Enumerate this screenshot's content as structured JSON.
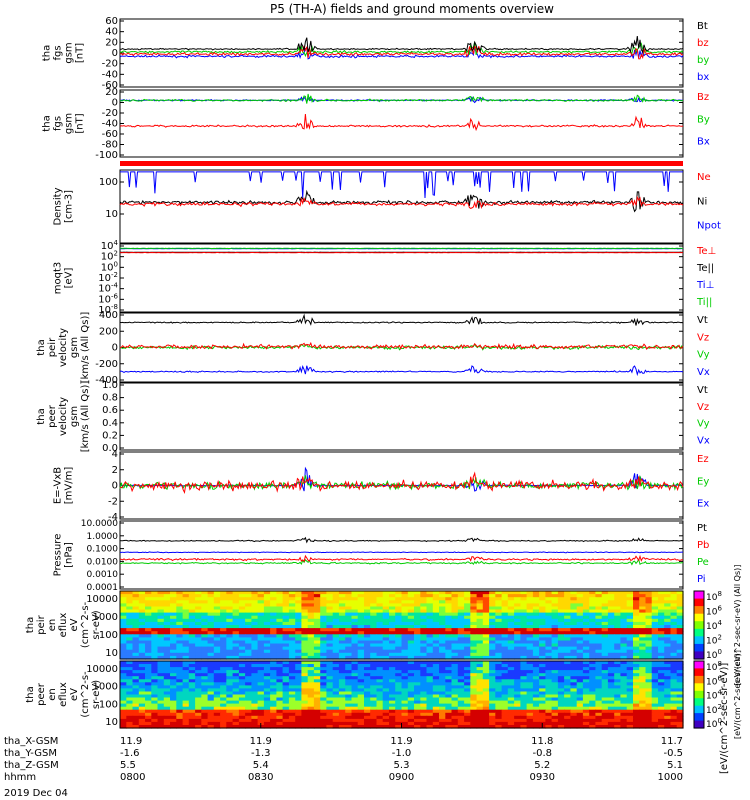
{
  "title": "P5 (TH-A) fields and ground moments overview",
  "date_label": "2019 Dec 04",
  "colorbar_label": "[eV/(cm^2-sec-sr-eV)]",
  "colors": {
    "black": "#000000",
    "red": "#ff0000",
    "green": "#00cc00",
    "blue": "#0000ff"
  },
  "chart_data": {
    "type": "line",
    "x_axis": {
      "tick_times": [
        "0800",
        "0830",
        "0900",
        "0930",
        "1000"
      ],
      "row_labels": [
        "tha_X-GSM",
        "tha_Y-GSM",
        "tha_Z-GSM",
        "hhmm"
      ],
      "rows": [
        [
          "11.9",
          "11.9",
          "11.9",
          "11.8",
          "11.7"
        ],
        [
          "-1.6",
          "-1.3",
          "-1.0",
          "-0.8",
          "-0.5"
        ],
        [
          "5.5",
          "5.4",
          "5.3",
          "5.2",
          "5.1"
        ],
        [
          "0800",
          "0830",
          "0900",
          "0930",
          "1000"
        ]
      ]
    },
    "panels": [
      {
        "ylabel": [
          "tha",
          "fgs",
          "gsm",
          "[nT]"
        ],
        "ylim": [
          -60,
          60
        ],
        "ticks": [
          "60",
          "40",
          "20",
          "0",
          "-20",
          "-40",
          "-60"
        ],
        "legend": [
          {
            "text": "Bt",
            "color": "black"
          },
          {
            "text": "bz",
            "color": "red"
          },
          {
            "text": "by",
            "color": "green"
          },
          {
            "text": "bx",
            "color": "blue"
          }
        ]
      },
      {
        "ylabel": [
          "tha",
          "fgs",
          "gsm",
          "[nT]"
        ],
        "ylim": [
          -110,
          20
        ],
        "ticks": [
          "20",
          "0",
          "-20",
          "-40",
          "-60",
          "-80",
          "-100"
        ],
        "legend": [
          {
            "text": "Bz",
            "color": "red"
          },
          {
            "text": "By",
            "color": "green"
          },
          {
            "text": "Bx",
            "color": "blue"
          }
        ]
      },
      {
        "ylabel": [
          "Density",
          "[cm-3]"
        ],
        "ylim": [
          0.3,
          300
        ],
        "ticks": [
          "100",
          "10"
        ],
        "legend": [
          {
            "text": "Ne",
            "color": "red"
          },
          {
            "text": "Ni",
            "color": "black"
          },
          {
            "text": "Npot",
            "color": "blue"
          }
        ]
      },
      {
        "ylabel": [
          "moqt3",
          "[eV]"
        ],
        "ylim": [
          1e-08,
          10000.0
        ],
        "ticks": [
          "10^4",
          "10^2",
          "10^0",
          "10^-2",
          "10^-4",
          "10^-6",
          "10^-8"
        ],
        "legend": [
          {
            "text": "Te⊥",
            "color": "red"
          },
          {
            "text": "Te||",
            "color": "black"
          },
          {
            "text": "Ti⊥",
            "color": "blue"
          },
          {
            "text": "Ti||",
            "color": "green"
          }
        ]
      },
      {
        "ylabel": [
          "tha",
          "peir",
          "velocity",
          "gsm",
          "[km/s (All Qs)]"
        ],
        "ylim": [
          -400,
          400
        ],
        "ticks": [
          "400",
          "200",
          "0",
          "-200",
          "-400"
        ],
        "legend": [
          {
            "text": "Vt",
            "color": "black"
          },
          {
            "text": "Vz",
            "color": "red"
          },
          {
            "text": "Vy",
            "color": "green"
          },
          {
            "text": "Vx",
            "color": "blue"
          }
        ]
      },
      {
        "ylabel": [
          "tha",
          "peer",
          "velocity",
          "gsm",
          "[km/s (All Qs)]"
        ],
        "ylim": [
          0,
          1.0
        ],
        "ticks": [
          "1.0",
          "0.8",
          "0.6",
          "0.4",
          "0.2",
          "0.0"
        ],
        "legend": [
          {
            "text": "Vt",
            "color": "black"
          },
          {
            "text": "Vz",
            "color": "red"
          },
          {
            "text": "Vy",
            "color": "green"
          },
          {
            "text": "Vx",
            "color": "blue"
          }
        ]
      },
      {
        "ylabel": [
          "E=-VxB",
          "[mV/m]"
        ],
        "ylim": [
          -4,
          4
        ],
        "ticks": [
          "4",
          "2",
          "0",
          "-2",
          "-4"
        ],
        "legend": [
          {
            "text": "Ez",
            "color": "red"
          },
          {
            "text": "Ey",
            "color": "green"
          },
          {
            "text": "Ex",
            "color": "blue"
          }
        ]
      },
      {
        "ylabel": [
          "Pressure",
          "[nPa]"
        ],
        "ylim": [
          0.0001,
          10
        ],
        "ticks": [
          "10.0000",
          "1.0000",
          "0.1000",
          "0.0100",
          "0.0010",
          "0.0001"
        ],
        "legend": [
          {
            "text": "Pt",
            "color": "black"
          },
          {
            "text": "Pb",
            "color": "red"
          },
          {
            "text": "Pe",
            "color": "green"
          },
          {
            "text": "Pi",
            "color": "blue"
          }
        ]
      },
      {
        "ylabel": [
          "tha",
          "peir",
          "en",
          "eflux",
          "eV",
          "(cm^2-s-",
          "sr-eV)"
        ],
        "ylim": [
          5,
          30000
        ],
        "ticks": [
          "10000",
          "1000",
          "100",
          "10"
        ],
        "colorbar_ticks": [
          "10^8",
          "10^6",
          "10^4",
          "10^2",
          "10^0"
        ],
        "colorbar_side_label": "[eV/(cm^2-sec-sr-eV) (All Qs)]"
      },
      {
        "ylabel": [
          "tha",
          "peer",
          "en",
          "eflux",
          "eV",
          "(cm^2-s-",
          "sr-eV)"
        ],
        "ylim": [
          5,
          30000
        ],
        "ticks": [
          "10000",
          "1000",
          "100",
          "10"
        ],
        "colorbar_ticks": [
          "10^8",
          "10^6",
          "10^4",
          "10^2",
          "10^0"
        ],
        "colorbar_side_label": "[eV/(cm^2-sec-sr-eV)]"
      }
    ]
  }
}
